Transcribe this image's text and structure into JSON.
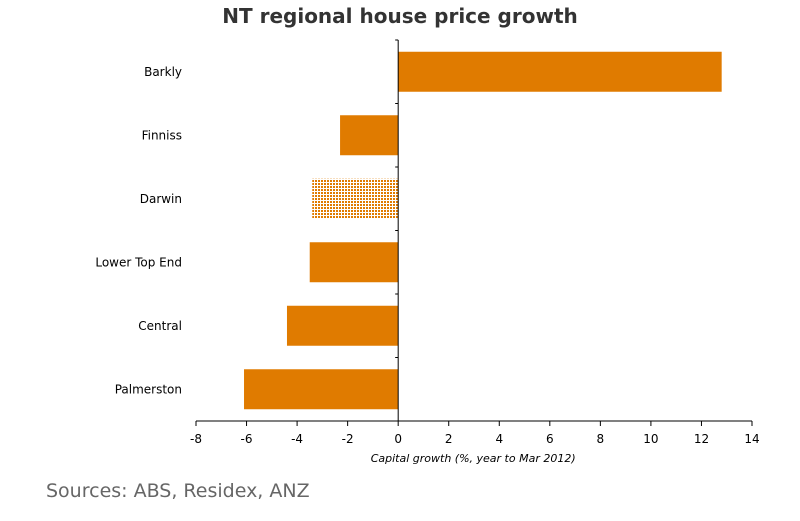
{
  "chart_data": {
    "type": "bar",
    "orientation": "horizontal",
    "title": "NT regional house price growth",
    "xlabel": "Capital growth (%, year to Mar 2012)",
    "ylabel": "",
    "xlim": [
      -8,
      14
    ],
    "xticks": [
      -8,
      -6,
      -4,
      -2,
      0,
      2,
      4,
      6,
      8,
      10,
      12,
      14
    ],
    "categories": [
      "Barkly",
      "Finniss",
      "Darwin",
      "Lower Top End",
      "Central",
      "Palmerston"
    ],
    "values": [
      12.8,
      -2.3,
      -3.4,
      -3.5,
      -4.4,
      -6.1
    ],
    "highlight": [
      "Darwin"
    ],
    "grid": false,
    "colors": {
      "bar": "#e07b00",
      "highlight_pattern": "#e07b00",
      "axis": "#000000"
    }
  },
  "source_note": "Sources: ABS, Residex, ANZ"
}
